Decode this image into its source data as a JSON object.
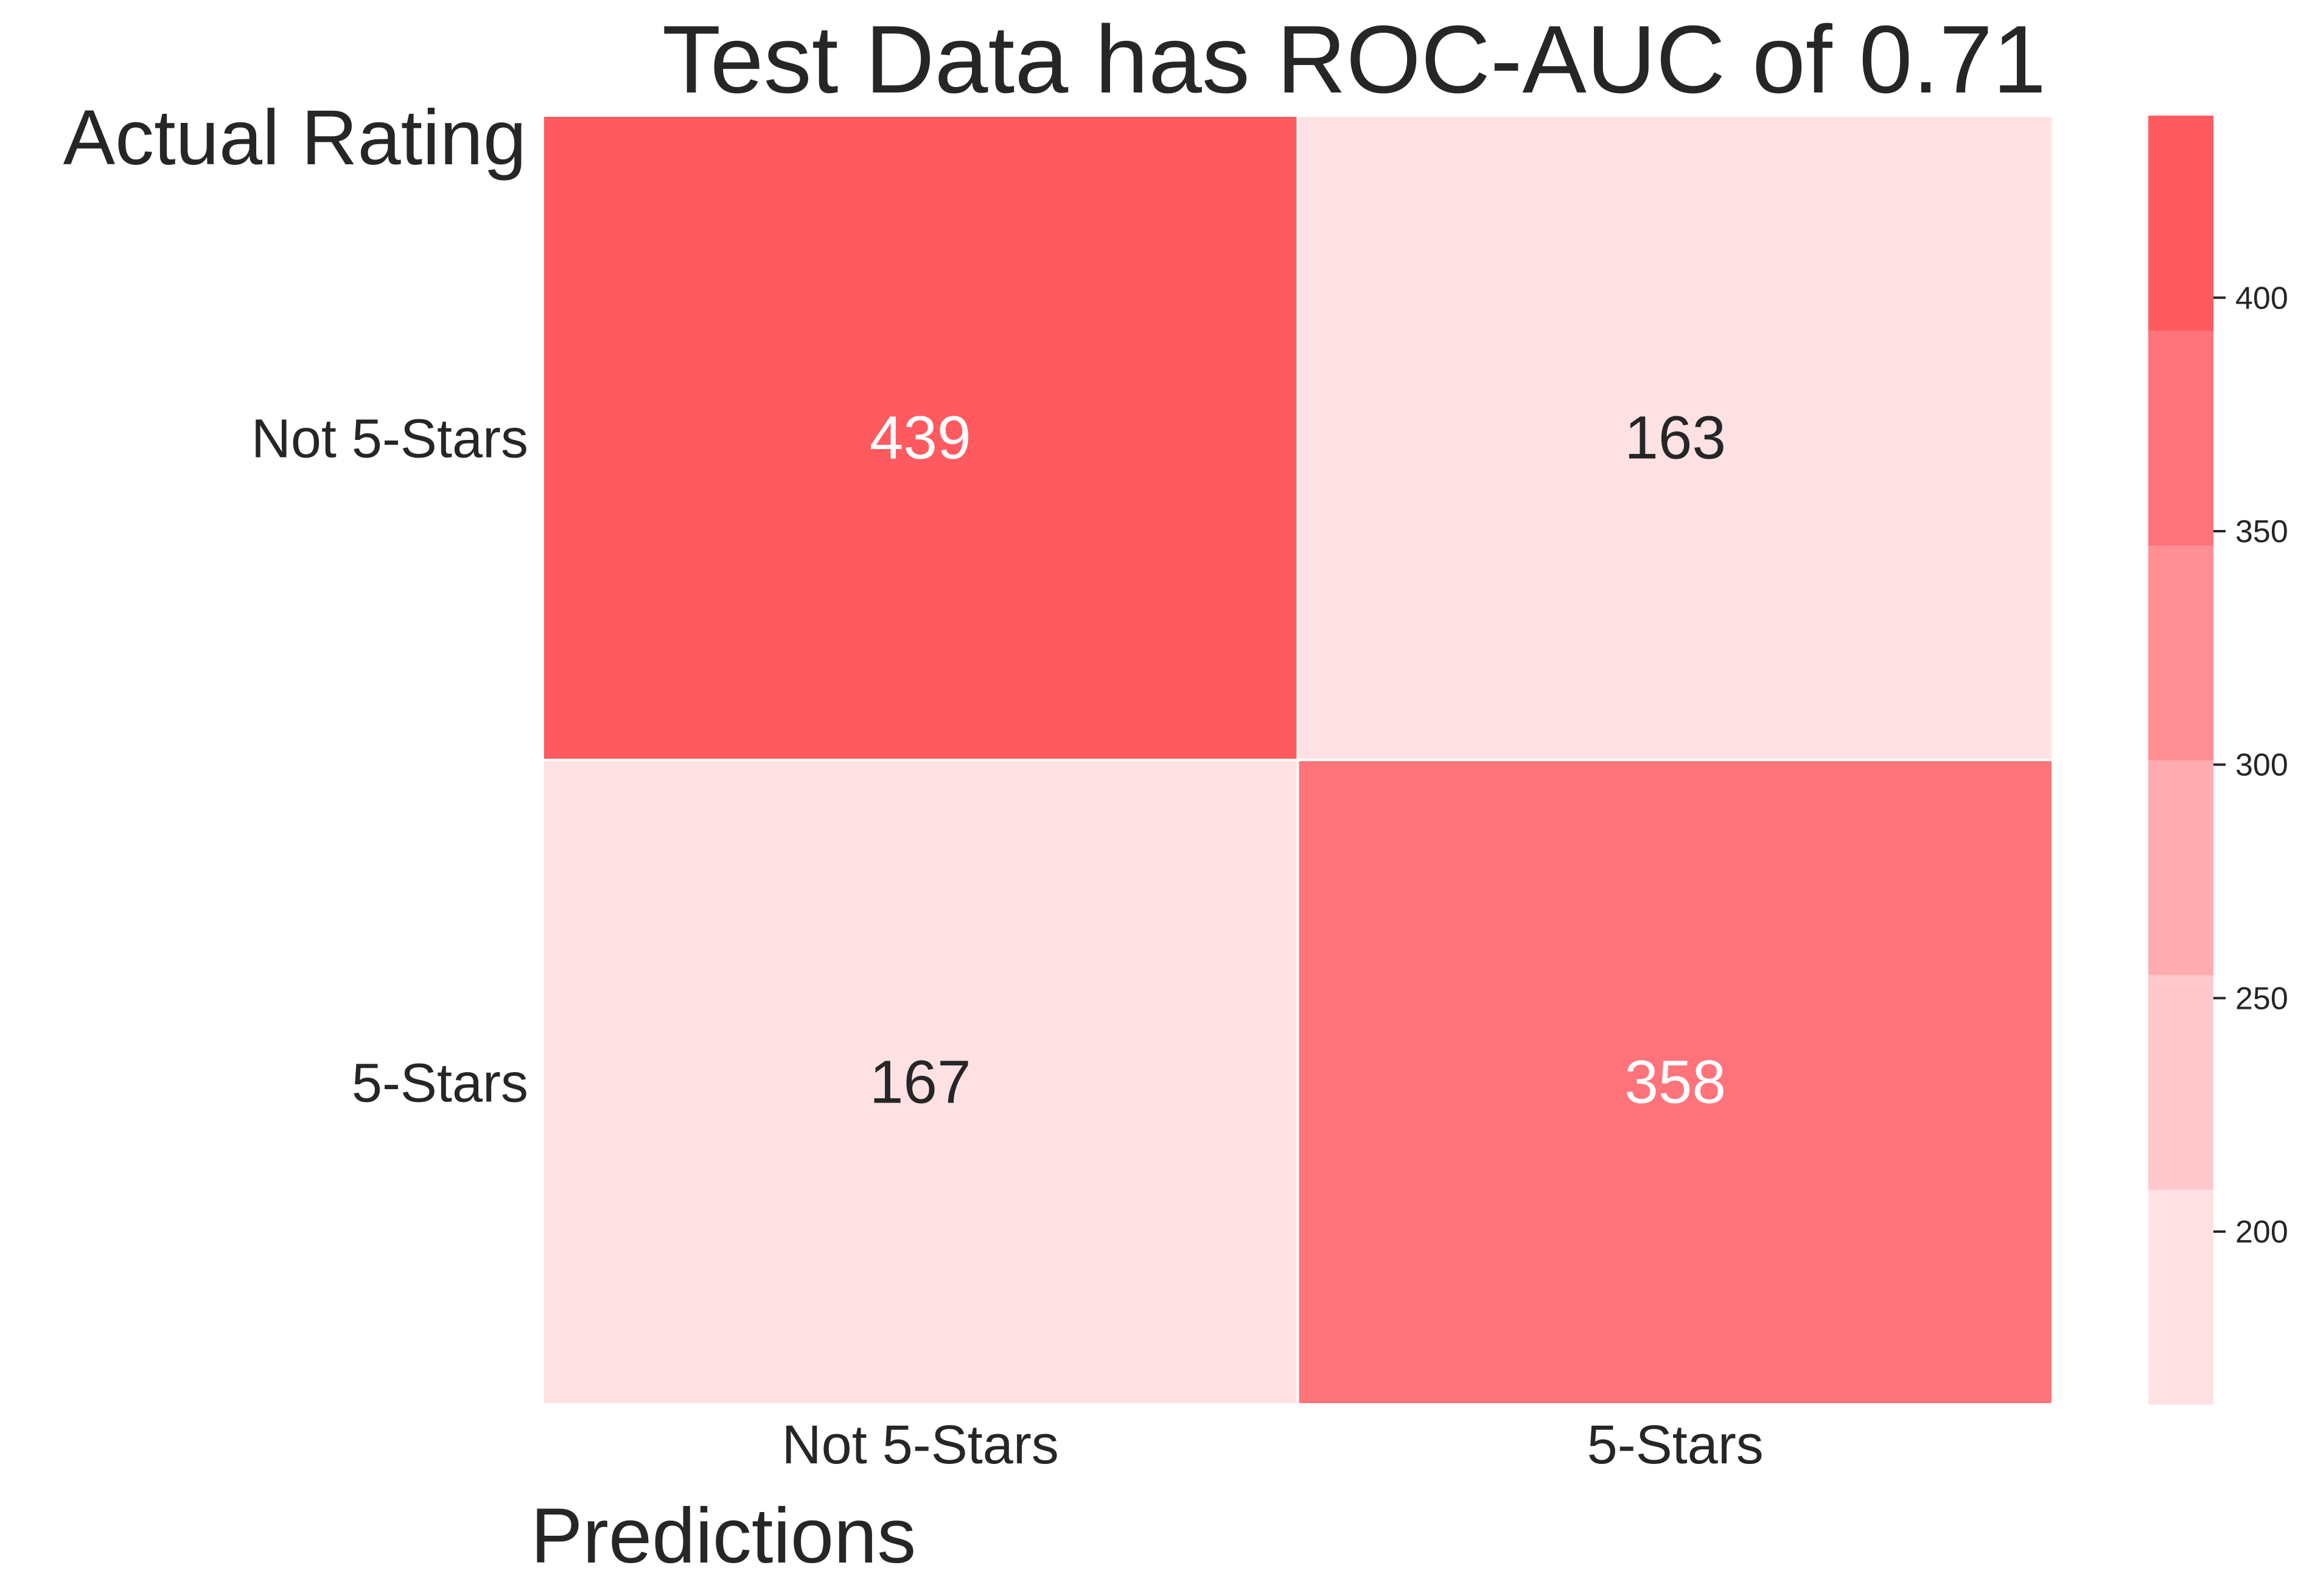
{
  "chart_data": {
    "type": "heatmap",
    "title": "Test Data has ROC-AUC of 0.71",
    "xlabel": "Predictions",
    "ylabel": "Actual Rating",
    "x_categories": [
      "Not 5-Stars",
      "5-Stars"
    ],
    "y_categories": [
      "Not 5-Stars",
      "5-Stars"
    ],
    "values": [
      [
        439,
        163
      ],
      [
        167,
        358
      ]
    ],
    "colorbar": {
      "range": [
        163,
        439
      ],
      "ticks": [
        200,
        250,
        300,
        350,
        400
      ],
      "tick_labels": [
        "200",
        "250",
        "300",
        "350",
        "400"
      ],
      "levels": 6,
      "colors": [
        "#ffe1e4",
        "#ffc8cc",
        "#ffabaf",
        "#ff8f94",
        "#ff737a",
        "#ff5a60"
      ]
    },
    "label_colors": {
      "dark_cell": "#ffffff",
      "light_cell": "#262626"
    },
    "grid": false
  }
}
